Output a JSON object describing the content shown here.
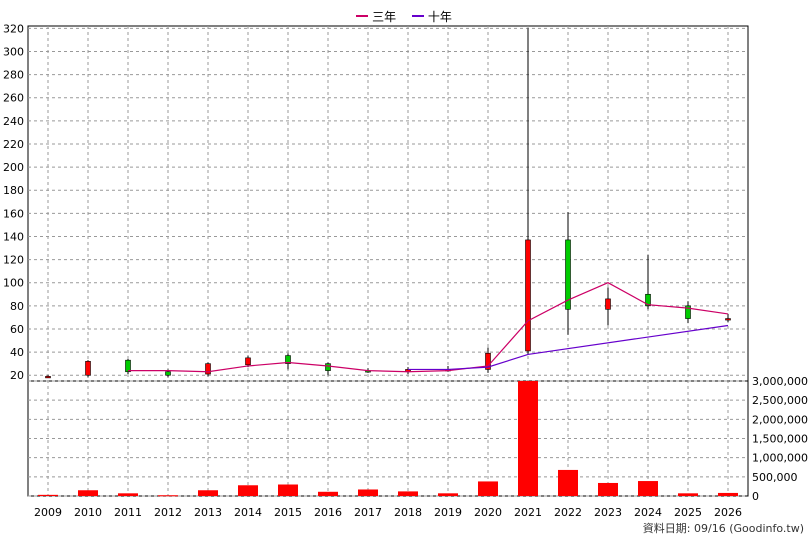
{
  "legend": [
    {
      "label": "三年",
      "color": "#cc0066"
    },
    {
      "label": "十年",
      "color": "#6600cc"
    }
  ],
  "footer": "資料日期: 09/16  (Goodinfo.tw)",
  "colors": {
    "up": "#ff0000",
    "down": "#00cc00",
    "volume": "#ff0000",
    "grid": "#999999"
  },
  "chart_data": {
    "type": "candlestick+bar",
    "categories": [
      "2009",
      "2010",
      "2011",
      "2012",
      "2013",
      "2014",
      "2015",
      "2016",
      "2017",
      "2018",
      "2019",
      "2020",
      "2021",
      "2022",
      "2023",
      "2024",
      "2025",
      "2026"
    ],
    "price_axis": {
      "ylim": [
        15,
        322
      ],
      "ticks": [
        20,
        40,
        60,
        80,
        100,
        120,
        140,
        160,
        180,
        200,
        220,
        240,
        260,
        280,
        300,
        320
      ]
    },
    "volume_axis": {
      "ylim": [
        0,
        3000000
      ],
      "ticks": [
        0,
        500000,
        1000000,
        1500000,
        2000000,
        2500000,
        3000000
      ],
      "tick_labels": [
        "0",
        "500,000",
        "1,000,000",
        "1,500,000",
        "2,000,000",
        "2,500,000",
        "3,000,000"
      ]
    },
    "candles": [
      {
        "open": 19,
        "close": 19,
        "high": 20,
        "low": 18
      },
      {
        "open": 20,
        "close": 32,
        "high": 33,
        "low": 18
      },
      {
        "open": 33,
        "close": 23,
        "high": 34,
        "low": 21
      },
      {
        "open": 23,
        "close": 20,
        "high": 25,
        "low": 18
      },
      {
        "open": 21,
        "close": 30,
        "high": 31,
        "low": 19
      },
      {
        "open": 29,
        "close": 35,
        "high": 37,
        "low": 27
      },
      {
        "open": 37,
        "close": 30,
        "high": 39,
        "low": 25
      },
      {
        "open": 30,
        "close": 24,
        "high": 31,
        "low": 20
      },
      {
        "open": 24,
        "close": 23,
        "high": 26,
        "low": 22
      },
      {
        "open": 23,
        "close": 25,
        "high": 27,
        "low": 21
      },
      {
        "open": 25,
        "close": 25,
        "high": 28,
        "low": 23
      },
      {
        "open": 25,
        "close": 39,
        "high": 44,
        "low": 22
      },
      {
        "open": 41,
        "close": 137,
        "high": 320,
        "low": 38
      },
      {
        "open": 137,
        "close": 77,
        "high": 161,
        "low": 55
      },
      {
        "open": 77,
        "close": 86,
        "high": 96,
        "low": 63
      },
      {
        "open": 90,
        "close": 80,
        "high": 124,
        "low": 77
      },
      {
        "open": 80,
        "close": 69,
        "high": 84,
        "low": 65
      },
      {
        "open": 68,
        "close": 69,
        "high": 73,
        "low": 66
      }
    ],
    "series": [
      {
        "name": "三年",
        "color": "#cc0066",
        "x": [
          "2011",
          "2012",
          "2013",
          "2014",
          "2015",
          "2016",
          "2017",
          "2018",
          "2019",
          "2020",
          "2021",
          "2022",
          "2023",
          "2024",
          "2025",
          "2026"
        ],
        "values": [
          24,
          24,
          23,
          28,
          31,
          28,
          24,
          23,
          24,
          28,
          67,
          85,
          100,
          81,
          78,
          73
        ]
      },
      {
        "name": "十年",
        "color": "#6600cc",
        "x": [
          "2018",
          "2019",
          "2020",
          "2021",
          "2026"
        ],
        "values": [
          25,
          25,
          27,
          38,
          63
        ]
      }
    ],
    "volume": [
      30000,
      150000,
      70000,
      20000,
      150000,
      280000,
      300000,
      110000,
      170000,
      120000,
      70000,
      380000,
      3000000,
      680000,
      340000,
      390000,
      70000,
      80000
    ]
  }
}
